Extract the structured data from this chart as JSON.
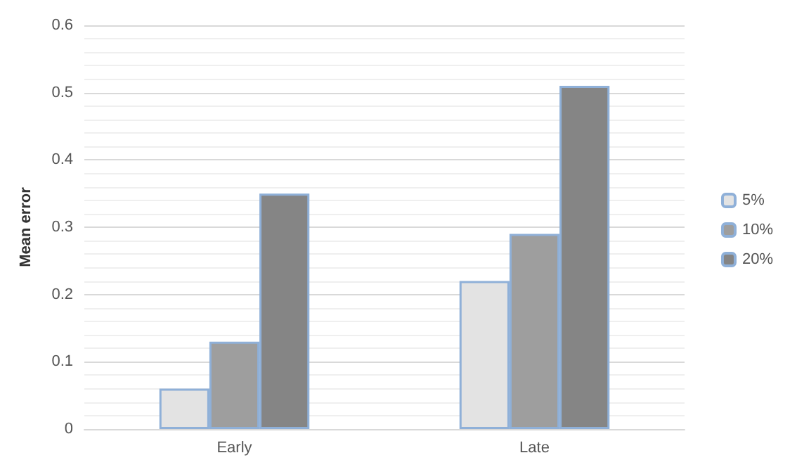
{
  "chart_data": {
    "type": "bar",
    "ylabel": "Mean error",
    "categories": [
      "Early",
      "Late"
    ],
    "series": [
      {
        "name": "5%",
        "color": "#e3e3e3",
        "values": [
          0.06,
          0.22
        ]
      },
      {
        "name": "10%",
        "color": "#9e9e9e",
        "values": [
          0.13,
          0.29
        ]
      },
      {
        "name": "20%",
        "color": "#858585",
        "values": [
          0.35,
          0.51
        ]
      }
    ],
    "ylim": [
      0,
      0.6
    ],
    "yticks": [
      0,
      0.1,
      0.2,
      0.3,
      0.4,
      0.5,
      0.6
    ],
    "grid": "y",
    "legend": "right"
  }
}
